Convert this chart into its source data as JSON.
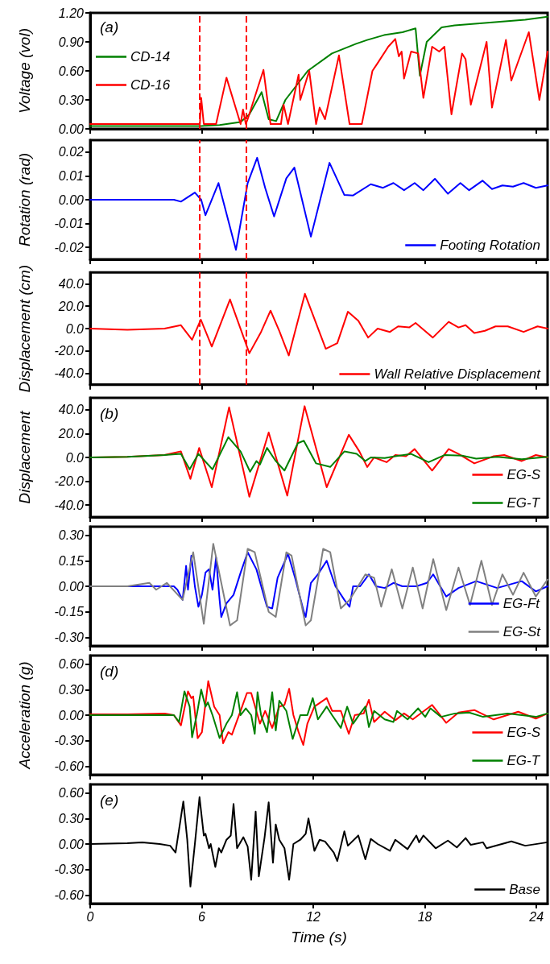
{
  "chart_data": [
    {
      "type": "line",
      "ylabel": "Voltage (vol)",
      "annotations": [
        "(a)"
      ],
      "xlim": [
        0,
        24.6
      ],
      "xticks": [
        0,
        6,
        12,
        18,
        24
      ],
      "ylim": [
        0,
        1.2
      ],
      "yticks": [
        {
          "value": 0,
          "label": "0.00"
        },
        {
          "value": 0.3,
          "label": "0.30"
        },
        {
          "value": 0.6,
          "label": "0.60"
        },
        {
          "value": 0.9,
          "label": "0.90"
        },
        {
          "value": 1.2,
          "label": "1.20"
        }
      ],
      "tick_labels": "y",
      "legend": "left",
      "ref_lines": [
        {
          "axis": "x",
          "value": 5.9,
          "color": "#ff0000",
          "line_style": "dashed"
        },
        {
          "axis": "x",
          "value": 8.4,
          "color": "#ff0000",
          "line_style": "dashed"
        }
      ],
      "series": [
        {
          "name": "CD-14",
          "color": "#008000",
          "x": [
            0,
            2,
            4,
            6,
            6.96,
            8.09,
            8.56,
            9.22,
            9.6,
            10.0,
            10.5,
            11.7,
            13.0,
            14.3,
            14.9,
            15.8,
            16.8,
            17.5,
            17.73,
            18.1,
            18.9,
            19.6,
            21.5,
            23.4,
            24.6
          ],
          "values": [
            0.03,
            0.03,
            0.03,
            0.03,
            0.04,
            0.07,
            0.15,
            0.38,
            0.1,
            0.08,
            0.3,
            0.6,
            0.78,
            0.88,
            0.92,
            0.97,
            1.0,
            1.04,
            0.55,
            0.9,
            1.05,
            1.07,
            1.1,
            1.13,
            1.16
          ]
        },
        {
          "name": "CD-16",
          "color": "#ff0000",
          "x": [
            0,
            2,
            4,
            5.9,
            5.97,
            6.11,
            6.77,
            7.33,
            8.09,
            8.22,
            8.37,
            8.47,
            9.32,
            9.7,
            10.26,
            10.4,
            10.64,
            11.21,
            11.3,
            11.78,
            12.15,
            12.34,
            12.63,
            13.38,
            13.95,
            14.61,
            15.18,
            15.46,
            16.03,
            16.41,
            16.6,
            16.75,
            16.88,
            17.26,
            17.64,
            17.92,
            18.39,
            18.77,
            19.05,
            19.43,
            20.0,
            20.19,
            20.47,
            21.32,
            21.61,
            22.36,
            22.65,
            23.59,
            24.16,
            24.6
          ],
          "values": [
            0.05,
            0.05,
            0.05,
            0.05,
            0.32,
            0.05,
            0.05,
            0.53,
            0.05,
            0.2,
            0.05,
            0.1,
            0.61,
            0.05,
            0.05,
            0.25,
            0.05,
            0.56,
            0.3,
            0.6,
            0.05,
            0.22,
            0.1,
            0.76,
            0.05,
            0.05,
            0.6,
            0.68,
            0.85,
            0.93,
            0.75,
            0.8,
            0.52,
            0.8,
            0.78,
            0.32,
            0.85,
            0.8,
            0.85,
            0.15,
            0.78,
            0.72,
            0.25,
            0.9,
            0.22,
            0.92,
            0.5,
            1.0,
            0.3,
            0.8
          ]
        }
      ]
    },
    {
      "type": "line",
      "ylabel": "Rotation (rad)",
      "xlim": [
        0,
        24.6
      ],
      "xticks": [
        0,
        6,
        12,
        18,
        24
      ],
      "ylim": [
        -0.025,
        0.025
      ],
      "yticks": [
        {
          "value": -0.02,
          "label": "-0.02"
        },
        {
          "value": -0.01,
          "label": "-0.01"
        },
        {
          "value": 0,
          "label": "0.00"
        },
        {
          "value": 0.01,
          "label": "0.01"
        },
        {
          "value": 0.02,
          "label": "0.02"
        }
      ],
      "tick_labels": "y",
      "legend": "bottom right",
      "ref_lines": [
        {
          "axis": "x",
          "value": 5.9,
          "color": "#ff0000",
          "line_style": "dashed"
        },
        {
          "axis": "x",
          "value": 8.4,
          "color": "#ff0000",
          "line_style": "dashed"
        }
      ],
      "series": [
        {
          "name": "Footing Rotation",
          "color": "#0000ff",
          "x": [
            0,
            2,
            4,
            4.5,
            4.88,
            5.63,
            5.97,
            6.2,
            6.9,
            7.84,
            8.47,
            8.98,
            9.41,
            9.89,
            10.55,
            10.98,
            11.87,
            12.87,
            13.67,
            14.14,
            15.09,
            15.75,
            16.31,
            16.88,
            17.45,
            17.92,
            18.54,
            19.24,
            19.91,
            20.38,
            21.1,
            21.61,
            22.17,
            22.74,
            23.31,
            23.97,
            24.6
          ],
          "values": [
            0,
            0,
            0,
            0,
            -0.0008,
            0.003,
            0,
            -0.0065,
            0.007,
            -0.021,
            0.007,
            0.0176,
            0.005,
            -0.007,
            0.009,
            0.0135,
            -0.0155,
            0.0155,
            0.002,
            0.0018,
            0.0065,
            0.005,
            0.007,
            0.004,
            0.007,
            0.004,
            0.0088,
            0.0025,
            0.007,
            0.004,
            0.008,
            0.0045,
            0.006,
            0.0055,
            0.007,
            0.005,
            0.006
          ]
        }
      ]
    },
    {
      "type": "line",
      "ylabel": "Displacement (cm)",
      "xlim": [
        0,
        24.6
      ],
      "xticks": [
        0,
        6,
        12,
        18,
        24
      ],
      "ylim": [
        -50,
        50
      ],
      "yticks": [
        {
          "value": -40,
          "label": "-40.0"
        },
        {
          "value": -20,
          "label": "-20.0"
        },
        {
          "value": 0,
          "label": "0.0"
        },
        {
          "value": 20,
          "label": "20.0"
        },
        {
          "value": 40,
          "label": "40.0"
        }
      ],
      "tick_labels": "y",
      "legend": "bottom right",
      "ref_lines": [
        {
          "axis": "x",
          "value": 5.9,
          "color": "#ff0000",
          "line_style": "dashed"
        },
        {
          "axis": "x",
          "value": 8.4,
          "color": "#ff0000",
          "line_style": "dashed"
        }
      ],
      "series": [
        {
          "name": "Wall Relative Displacement",
          "color": "#ff0000",
          "x": [
            0,
            2,
            4,
            4.88,
            5.48,
            5.95,
            6.54,
            7.52,
            8.56,
            9.19,
            9.7,
            10.17,
            10.68,
            11.55,
            12.67,
            13.29,
            13.86,
            14.42,
            14.95,
            15.46,
            16.12,
            16.56,
            17.16,
            17.5,
            18.43,
            19.28,
            19.81,
            20.19,
            20.66,
            21.23,
            21.8,
            22.46,
            23.31,
            24.06,
            24.6
          ],
          "values": [
            0,
            -1,
            0,
            3,
            -10,
            8,
            -16,
            26,
            -22,
            -3,
            16,
            -2,
            -24,
            31,
            -18,
            -13,
            15,
            7,
            -8,
            0,
            -3,
            2,
            1,
            5,
            -8,
            6,
            1,
            3,
            -4,
            -2,
            2,
            2,
            -3,
            2,
            0
          ]
        }
      ]
    },
    {
      "type": "line",
      "ylabel": "Displacement",
      "annotations": [
        "(b)"
      ],
      "xlim": [
        0,
        24.6
      ],
      "xticks": [
        0,
        6,
        12,
        18,
        24
      ],
      "ylim": [
        -50,
        50
      ],
      "yticks": [
        {
          "value": -40,
          "label": "-40.0"
        },
        {
          "value": -20,
          "label": "-20.0"
        },
        {
          "value": 0,
          "label": "0.0"
        },
        {
          "value": 20,
          "label": "20.0"
        },
        {
          "value": 40,
          "label": "40.0"
        }
      ],
      "tick_labels": "y",
      "legend": "bottom right",
      "series": [
        {
          "name": "EG-S",
          "color": "#ff0000",
          "x": [
            0,
            2,
            4,
            4.88,
            5.39,
            5.86,
            6.54,
            7.47,
            8.56,
            9.6,
            10.6,
            11.53,
            12.72,
            13.91,
            14.48,
            14.9,
            15.27,
            15.94,
            16.41,
            16.98,
            17.45,
            18.39,
            19.28,
            19.81,
            20.66,
            21.7,
            22.27,
            23.21,
            23.97,
            24.6
          ],
          "values": [
            0,
            0.5,
            2,
            5,
            -18,
            8,
            -25,
            42,
            -33,
            21,
            -32,
            43,
            -25,
            19,
            5,
            -8,
            0,
            -4,
            2,
            1,
            7,
            -11,
            7,
            3,
            -5,
            1,
            2,
            -3,
            2,
            0
          ]
        },
        {
          "name": "EG-T",
          "color": "#008000",
          "x": [
            0,
            2,
            4,
            4.88,
            5.35,
            5.82,
            6.58,
            7.43,
            8.09,
            8.6,
            8.94,
            9.13,
            9.51,
            9.98,
            10.45,
            11.17,
            11.49,
            12.15,
            12.91,
            13.67,
            14.33,
            14.8,
            15.09,
            15.84,
            16.41,
            17.26,
            18.2,
            19.05,
            20.0,
            20.76,
            21.89,
            23.21,
            24.6
          ],
          "values": [
            0,
            0.5,
            2,
            3,
            -10,
            3,
            -10,
            17,
            5,
            -12,
            -3,
            -6,
            8,
            -3,
            -11,
            12,
            14,
            -5,
            -8,
            5,
            3,
            -3,
            0,
            -0.5,
            1,
            3,
            -4,
            2,
            1.5,
            -1,
            0.5,
            -1.5,
            0.5
          ]
        }
      ]
    },
    {
      "type": "line",
      "xlim": [
        0,
        24.6
      ],
      "xticks": [
        0,
        6,
        12,
        18,
        24
      ],
      "ylim": [
        -0.35,
        0.35
      ],
      "yticks": [
        {
          "value": -0.3,
          "label": "-0.30"
        },
        {
          "value": -0.15,
          "label": "-0.15"
        },
        {
          "value": 0,
          "label": "0.00"
        },
        {
          "value": 0.15,
          "label": "0.15"
        },
        {
          "value": 0.3,
          "label": "0.30"
        }
      ],
      "tick_labels": "y",
      "legend": "bottom right",
      "series": [
        {
          "name": "EG-Ft",
          "color": "#0000ff",
          "x": [
            0,
            2,
            4,
            4.5,
            4.69,
            4.97,
            5.16,
            5.26,
            5.44,
            5.63,
            5.82,
            6.01,
            6.2,
            6.39,
            6.58,
            6.77,
            6.96,
            7.05,
            7.33,
            7.71,
            8.09,
            8.47,
            8.94,
            9.51,
            9.79,
            10.08,
            10.64,
            11.02,
            11.49,
            11.59,
            11.87,
            12.25,
            12.72,
            13.19,
            13.67,
            13.95,
            14.14,
            14.52,
            14.99,
            15.37,
            15.84,
            16.31,
            16.79,
            17.54,
            18.11,
            18.45,
            19.15,
            19.81,
            20.76,
            21.89,
            23.21,
            23.97,
            24.6
          ],
          "values": [
            0,
            0,
            0,
            0,
            -0.02,
            -0.08,
            0.12,
            -0.02,
            0.18,
            0,
            -0.12,
            -0.05,
            0.08,
            0.1,
            -0.02,
            0.17,
            -0.08,
            -0.18,
            -0.1,
            -0.05,
            0.08,
            0.2,
            0.1,
            -0.12,
            -0.13,
            0.05,
            0.19,
            0.05,
            -0.15,
            -0.18,
            0.02,
            0.07,
            0.15,
            0,
            -0.08,
            -0.12,
            0,
            0,
            0.07,
            0,
            -0.01,
            0.02,
            0,
            0,
            0.02,
            0.07,
            -0.06,
            -0.01,
            0.03,
            -0.01,
            0.03,
            -0.03,
            0
          ]
        },
        {
          "name": "EG-St",
          "color": "#808080",
          "x": [
            0,
            2,
            3.18,
            3.55,
            4.12,
            4.97,
            5.54,
            6.11,
            6.62,
            7.52,
            7.9,
            8.47,
            8.85,
            9.6,
            9.98,
            10.55,
            10.83,
            11.59,
            11.87,
            12.53,
            12.91,
            13.48,
            13.95,
            14.8,
            15.27,
            15.65,
            16.22,
            16.79,
            17.35,
            17.88,
            18.45,
            19.15,
            19.81,
            20.43,
            21.04,
            21.61,
            22.17,
            22.74,
            23.31,
            23.97,
            24.6
          ],
          "values": [
            0,
            0,
            0.02,
            -0.02,
            0.02,
            -0.08,
            0.2,
            -0.22,
            0.25,
            -0.23,
            -0.2,
            0.22,
            0.2,
            -0.15,
            -0.18,
            0.2,
            0.18,
            -0.23,
            -0.2,
            0.22,
            0.2,
            -0.13,
            -0.08,
            0.07,
            0.05,
            -0.12,
            0.1,
            -0.13,
            0.11,
            -0.13,
            0.16,
            -0.14,
            0.11,
            -0.11,
            0.15,
            -0.11,
            0.07,
            -0.05,
            0.08,
            -0.06,
            0.04
          ]
        }
      ]
    },
    {
      "type": "line",
      "ylabel": "Acceleration (g)",
      "annotations": [
        "(d)"
      ],
      "xlim": [
        0,
        24.6
      ],
      "xticks": [
        0,
        6,
        12,
        18,
        24
      ],
      "ylim": [
        -0.7,
        0.7
      ],
      "yticks": [
        {
          "value": -0.6,
          "label": "-0.60"
        },
        {
          "value": -0.3,
          "label": "-0.30"
        },
        {
          "value": 0,
          "label": "0.00"
        },
        {
          "value": 0.3,
          "label": "0.30"
        },
        {
          "value": 0.6,
          "label": "0.60"
        }
      ],
      "tick_labels": "y",
      "legend": "bottom right",
      "series": [
        {
          "name": "EG-S",
          "color": "#ff0000",
          "x": [
            0,
            2,
            4,
            4.5,
            4.88,
            5.26,
            5.44,
            5.54,
            5.78,
            6.01,
            6.35,
            6.67,
            6.96,
            7.15,
            7.43,
            7.62,
            8.09,
            8.43,
            8.66,
            9.13,
            9.41,
            9.79,
            10.17,
            10.45,
            10.7,
            10.93,
            11.21,
            11.46,
            11.68,
            12.06,
            12.72,
            13.01,
            13.48,
            13.91,
            14.23,
            14.71,
            14.99,
            15.27,
            15.84,
            16.41,
            16.88,
            17.35,
            18.39,
            19.15,
            19.81,
            20.66,
            21.7,
            23.02,
            23.97,
            24.6
          ],
          "values": [
            0.01,
            0.01,
            0.02,
            0,
            -0.12,
            0.28,
            0.2,
            0.22,
            -0.27,
            -0.2,
            0.4,
            0.1,
            0,
            -0.33,
            -0.2,
            -0.23,
            0.05,
            0.26,
            0.26,
            -0.1,
            0.05,
            -0.15,
            0.1,
            0.12,
            0.31,
            0,
            -0.2,
            -0.35,
            -0.1,
            0.1,
            0.2,
            0.05,
            0.05,
            -0.22,
            0,
            0.02,
            0.18,
            -0.08,
            0.04,
            -0.06,
            0.02,
            -0.05,
            0.12,
            -0.09,
            0.03,
            0.06,
            -0.05,
            0.04,
            -0.04,
            0.02
          ]
        },
        {
          "name": "EG-T",
          "color": "#008000",
          "x": [
            0,
            2,
            4,
            4.5,
            4.78,
            5.07,
            5.35,
            5.48,
            5.73,
            5.97,
            6.2,
            6.33,
            6.58,
            6.96,
            7.33,
            7.62,
            7.9,
            8.09,
            8.37,
            8.66,
            8.85,
            9.0,
            9.19,
            9.51,
            9.79,
            9.98,
            10.17,
            10.55,
            10.89,
            11.3,
            11.68,
            11.97,
            12.25,
            12.72,
            13.01,
            13.48,
            13.82,
            14.14,
            14.52,
            14.8,
            14.99,
            15.27,
            15.84,
            16.31,
            16.5,
            17.07,
            17.64,
            18.02,
            18.3,
            18.87,
            19.62,
            20.38,
            21.13,
            22.46,
            23.97,
            24.6
          ],
          "values": [
            0,
            0,
            0,
            0,
            -0.08,
            0.28,
            0.1,
            -0.26,
            0,
            0.3,
            0.1,
            0.15,
            0,
            -0.27,
            -0.1,
            0,
            0.27,
            0,
            0.08,
            0,
            -0.22,
            0.27,
            0,
            -0.2,
            0.27,
            -0.18,
            0.17,
            0.05,
            -0.28,
            0,
            0,
            0.2,
            -0.05,
            0.1,
            0,
            -0.15,
            0.1,
            -0.1,
            0.02,
            0.1,
            -0.14,
            0.05,
            -0.05,
            -0.08,
            0.05,
            -0.05,
            0.08,
            -0.02,
            0.08,
            -0.02,
            0.02,
            0.03,
            -0.02,
            0.02,
            -0.02,
            0.02
          ]
        }
      ]
    },
    {
      "type": "line",
      "xlabel": "Time (s)",
      "annotations": [
        "(e)"
      ],
      "xlim": [
        0,
        24.6
      ],
      "xticks": [
        0,
        6,
        12,
        18,
        24
      ],
      "ylim": [
        -0.7,
        0.7
      ],
      "yticks": [
        {
          "value": -0.6,
          "label": "-0.60"
        },
        {
          "value": -0.3,
          "label": "-0.30"
        },
        {
          "value": 0,
          "label": "0.00"
        },
        {
          "value": 0.3,
          "label": "0.30"
        },
        {
          "value": 0.6,
          "label": "0.60"
        }
      ],
      "legend": "bottom right",
      "series": [
        {
          "name": "Base",
          "color": "#000000",
          "x": [
            0,
            2,
            2.8,
            3.74,
            4.3,
            4.59,
            5.01,
            5.22,
            5.39,
            5.63,
            5.88,
            6.11,
            6.2,
            6.39,
            6.48,
            6.73,
            6.92,
            7.05,
            7.33,
            7.56,
            7.71,
            7.9,
            8.24,
            8.47,
            8.66,
            8.9,
            9.07,
            9.38,
            9.6,
            9.83,
            9.98,
            10.17,
            10.45,
            10.7,
            10.93,
            11.3,
            11.59,
            11.74,
            12.06,
            12.34,
            12.63,
            13.1,
            13.29,
            13.67,
            13.86,
            14.42,
            14.8,
            15.09,
            15.46,
            16.12,
            16.41,
            17.07,
            17.54,
            17.69,
            17.92,
            18.58,
            19.24,
            19.72,
            20.19,
            20.47,
            21.13,
            21.32,
            22.65,
            23.4,
            24.6
          ],
          "values": [
            0,
            0.01,
            0.02,
            0,
            -0.02,
            -0.1,
            0.5,
            0.05,
            -0.5,
            0,
            0.55,
            0.1,
            0.12,
            -0.05,
            0,
            -0.27,
            -0.05,
            -0.1,
            0.05,
            0.1,
            0.47,
            -0.05,
            0.08,
            -0.03,
            -0.42,
            0.38,
            -0.38,
            0.08,
            0.49,
            -0.22,
            0.23,
            0.05,
            -0.05,
            -0.42,
            0,
            0.05,
            0.12,
            0.3,
            -0.08,
            0.05,
            0.03,
            -0.1,
            -0.2,
            0.15,
            -0.02,
            0.1,
            -0.18,
            0.06,
            0,
            -0.08,
            0.05,
            -0.06,
            0.1,
            0.02,
            0.1,
            -0.05,
            0.04,
            -0.04,
            0.07,
            -0.01,
            0.02,
            -0.05,
            0.03,
            -0.02,
            0.02
          ]
        }
      ]
    }
  ]
}
